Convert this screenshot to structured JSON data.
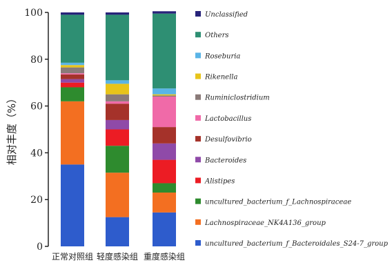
{
  "chart_data": {
    "type": "bar",
    "stacked": true,
    "xlabel": "",
    "ylabel": "相对丰度（%）",
    "ylim": [
      0,
      100
    ],
    "yticks": [
      0,
      20,
      40,
      60,
      80,
      100
    ],
    "legend_position": "right",
    "grid": false,
    "categories": [
      "正常对照组",
      "轻度感染组",
      "重度感染组"
    ],
    "series": [
      {
        "name": "uncultured_bacterium_f_Bacteroidales_S24-7_group",
        "color": "#2e5ccc",
        "values": [
          35,
          12.5,
          14.5
        ]
      },
      {
        "name": "Lachnospiraceae_NK4A136_group",
        "color": "#f36f21",
        "values": [
          27,
          19,
          8.5
        ]
      },
      {
        "name": "uncultured_bacterium_f_Lachnospiraceae",
        "color": "#2e8b2e",
        "values": [
          6,
          11.5,
          4
        ]
      },
      {
        "name": "Alistipes",
        "color": "#ec1c24",
        "values": [
          2,
          7,
          10
        ]
      },
      {
        "name": "Bacteroides",
        "color": "#8f4aa8",
        "values": [
          1.5,
          4,
          7
        ]
      },
      {
        "name": "Desulfovibrio",
        "color": "#a5322a",
        "values": [
          2,
          7,
          7
        ]
      },
      {
        "name": "Lactobacillus",
        "color": "#f06aa8",
        "values": [
          0.5,
          1,
          13
        ]
      },
      {
        "name": "Ruminiclostridium",
        "color": "#8a7a78",
        "values": [
          2.5,
          3,
          0.5
        ]
      },
      {
        "name": "Rikenella",
        "color": "#e8c41a",
        "values": [
          1,
          4.5,
          0.5
        ]
      },
      {
        "name": "Roseburia",
        "color": "#5ab4e6",
        "values": [
          1,
          1.5,
          2.5
        ]
      },
      {
        "name": "Others",
        "color": "#2e8f73",
        "values": [
          20.5,
          28,
          32
        ]
      },
      {
        "name": "Unclassified",
        "color": "#27237a",
        "values": [
          1,
          1,
          1
        ]
      }
    ]
  }
}
